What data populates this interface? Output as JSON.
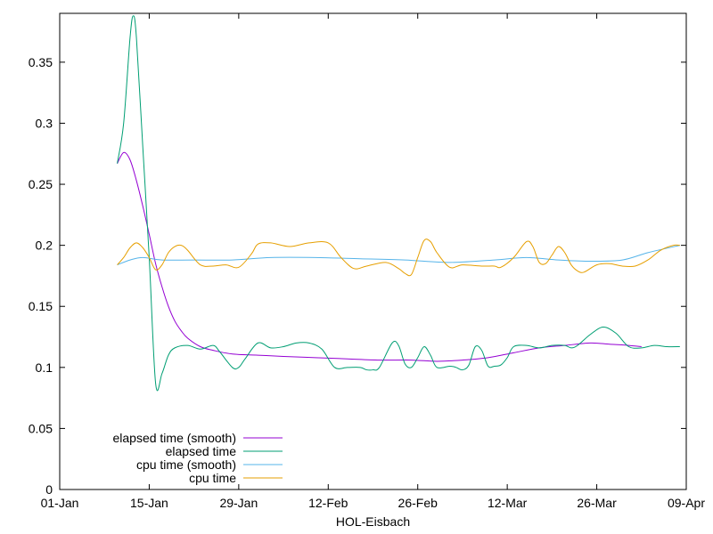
{
  "chart_data": {
    "type": "line",
    "title": "",
    "xlabel": "HOL-Eisbach",
    "ylabel": "",
    "xlim": [
      "2019-01-01",
      "2019-04-09"
    ],
    "ylim": [
      0,
      0.39
    ],
    "x_ticks": [
      "01-Jan",
      "15-Jan",
      "29-Jan",
      "12-Feb",
      "26-Feb",
      "12-Mar",
      "26-Mar",
      "09-Apr"
    ],
    "y_ticks": [
      "0",
      "0.05",
      "0.1",
      "0.15",
      "0.2",
      "0.25",
      "0.3",
      "0.35"
    ],
    "grid": false,
    "legend_position": "bottom-left",
    "series": [
      {
        "name": "elapsed time (smooth)",
        "color": "#9400d3",
        "points": [
          [
            "2019-01-10",
            0.267
          ],
          [
            "2019-01-11",
            0.276
          ],
          [
            "2019-01-12",
            0.27
          ],
          [
            "2019-01-13",
            0.253
          ],
          [
            "2019-01-14",
            0.232
          ],
          [
            "2019-01-15",
            0.209
          ],
          [
            "2019-01-16",
            0.185
          ],
          [
            "2019-01-17",
            0.166
          ],
          [
            "2019-01-18",
            0.15
          ],
          [
            "2019-01-19",
            0.138
          ],
          [
            "2019-01-20",
            0.13
          ],
          [
            "2019-01-21",
            0.124
          ],
          [
            "2019-01-23",
            0.117
          ],
          [
            "2019-01-25",
            0.114
          ],
          [
            "2019-01-28",
            0.111
          ],
          [
            "2019-02-01",
            0.11
          ],
          [
            "2019-02-05",
            0.109
          ],
          [
            "2019-02-10",
            0.108
          ],
          [
            "2019-02-15",
            0.107
          ],
          [
            "2019-02-20",
            0.106
          ],
          [
            "2019-02-25",
            0.106
          ],
          [
            "2019-03-01",
            0.105
          ],
          [
            "2019-03-05",
            0.106
          ],
          [
            "2019-03-09",
            0.108
          ],
          [
            "2019-03-13",
            0.112
          ],
          [
            "2019-03-17",
            0.116
          ],
          [
            "2019-03-21",
            0.118
          ],
          [
            "2019-03-25",
            0.12
          ],
          [
            "2019-03-28",
            0.119
          ],
          [
            "2019-03-31",
            0.118
          ],
          [
            "2019-04-02",
            0.117
          ]
        ]
      },
      {
        "name": "elapsed time",
        "color": "#009e73",
        "points": [
          [
            "2019-01-10",
            0.267
          ],
          [
            "2019-01-11",
            0.3
          ],
          [
            "2019-01-12",
            0.37
          ],
          [
            "2019-01-12.5",
            0.388
          ],
          [
            "2019-01-13",
            0.37
          ],
          [
            "2019-01-14",
            0.28
          ],
          [
            "2019-01-15",
            0.19
          ],
          [
            "2019-01-16",
            0.087
          ],
          [
            "2019-01-17",
            0.095
          ],
          [
            "2019-01-18",
            0.11
          ],
          [
            "2019-01-19",
            0.116
          ],
          [
            "2019-01-21",
            0.118
          ],
          [
            "2019-01-23",
            0.115
          ],
          [
            "2019-01-25",
            0.118
          ],
          [
            "2019-01-26",
            0.113
          ],
          [
            "2019-01-28",
            0.1
          ],
          [
            "2019-01-29",
            0.1
          ],
          [
            "2019-01-30",
            0.107
          ],
          [
            "2019-02-01",
            0.12
          ],
          [
            "2019-02-03",
            0.116
          ],
          [
            "2019-02-05",
            0.117
          ],
          [
            "2019-02-07",
            0.12
          ],
          [
            "2019-02-09",
            0.12
          ],
          [
            "2019-02-11",
            0.115
          ],
          [
            "2019-02-13",
            0.1
          ],
          [
            "2019-02-15",
            0.1
          ],
          [
            "2019-02-17",
            0.1
          ],
          [
            "2019-02-18",
            0.098
          ],
          [
            "2019-02-19",
            0.098
          ],
          [
            "2019-02-20",
            0.1
          ],
          [
            "2019-02-22",
            0.12
          ],
          [
            "2019-02-23",
            0.118
          ],
          [
            "2019-02-24",
            0.103
          ],
          [
            "2019-02-25",
            0.1
          ],
          [
            "2019-02-26",
            0.108
          ],
          [
            "2019-02-27",
            0.117
          ],
          [
            "2019-02-28",
            0.11
          ],
          [
            "2019-03-01",
            0.1
          ],
          [
            "2019-03-03",
            0.101
          ],
          [
            "2019-03-04",
            0.1
          ],
          [
            "2019-03-05",
            0.098
          ],
          [
            "2019-03-06",
            0.102
          ],
          [
            "2019-03-07",
            0.117
          ],
          [
            "2019-03-08",
            0.114
          ],
          [
            "2019-03-09",
            0.101
          ],
          [
            "2019-03-10",
            0.101
          ],
          [
            "2019-03-11",
            0.102
          ],
          [
            "2019-03-12",
            0.108
          ],
          [
            "2019-03-13",
            0.117
          ],
          [
            "2019-03-15",
            0.118
          ],
          [
            "2019-03-17",
            0.116
          ],
          [
            "2019-03-19",
            0.118
          ],
          [
            "2019-03-21",
            0.118
          ],
          [
            "2019-03-22",
            0.116
          ],
          [
            "2019-03-23",
            0.118
          ],
          [
            "2019-03-25",
            0.127
          ],
          [
            "2019-03-27",
            0.133
          ],
          [
            "2019-03-29",
            0.128
          ],
          [
            "2019-03-31",
            0.117
          ],
          [
            "2019-04-02",
            0.116
          ],
          [
            "2019-04-04",
            0.118
          ],
          [
            "2019-04-06",
            0.117
          ],
          [
            "2019-04-08",
            0.117
          ]
        ]
      },
      {
        "name": "cpu time (smooth)",
        "color": "#56b4e9",
        "points": [
          [
            "2019-01-10",
            0.184
          ],
          [
            "2019-01-12",
            0.188
          ],
          [
            "2019-01-14",
            0.19
          ],
          [
            "2019-01-17",
            0.188
          ],
          [
            "2019-01-22",
            0.188
          ],
          [
            "2019-01-28",
            0.188
          ],
          [
            "2019-02-03",
            0.19
          ],
          [
            "2019-02-10",
            0.19
          ],
          [
            "2019-02-17",
            0.189
          ],
          [
            "2019-02-24",
            0.188
          ],
          [
            "2019-03-03",
            0.186
          ],
          [
            "2019-03-10",
            0.188
          ],
          [
            "2019-03-15",
            0.19
          ],
          [
            "2019-03-20",
            0.188
          ],
          [
            "2019-03-25",
            0.187
          ],
          [
            "2019-03-30",
            0.188
          ],
          [
            "2019-04-03",
            0.194
          ],
          [
            "2019-04-08",
            0.2
          ]
        ]
      },
      {
        "name": "cpu time",
        "color": "#e69f00",
        "points": [
          [
            "2019-01-10",
            0.184
          ],
          [
            "2019-01-11",
            0.19
          ],
          [
            "2019-01-12",
            0.198
          ],
          [
            "2019-01-13",
            0.202
          ],
          [
            "2019-01-14",
            0.198
          ],
          [
            "2019-01-15",
            0.19
          ],
          [
            "2019-01-16",
            0.18
          ],
          [
            "2019-01-17",
            0.184
          ],
          [
            "2019-01-18",
            0.194
          ],
          [
            "2019-01-19",
            0.199
          ],
          [
            "2019-01-20",
            0.2
          ],
          [
            "2019-01-21",
            0.196
          ],
          [
            "2019-01-23",
            0.184
          ],
          [
            "2019-01-25",
            0.183
          ],
          [
            "2019-01-27",
            0.184
          ],
          [
            "2019-01-29",
            0.182
          ],
          [
            "2019-01-31",
            0.193
          ],
          [
            "2019-02-01",
            0.201
          ],
          [
            "2019-02-03",
            0.202
          ],
          [
            "2019-02-06",
            0.199
          ],
          [
            "2019-02-09",
            0.202
          ],
          [
            "2019-02-12",
            0.202
          ],
          [
            "2019-02-14",
            0.19
          ],
          [
            "2019-02-16",
            0.181
          ],
          [
            "2019-02-18",
            0.183
          ],
          [
            "2019-02-21",
            0.186
          ],
          [
            "2019-02-23",
            0.181
          ],
          [
            "2019-02-24",
            0.177
          ],
          [
            "2019-02-25",
            0.176
          ],
          [
            "2019-02-26",
            0.19
          ],
          [
            "2019-02-27",
            0.204
          ],
          [
            "2019-02-28",
            0.203
          ],
          [
            "2019-03-01",
            0.194
          ],
          [
            "2019-03-03",
            0.182
          ],
          [
            "2019-03-05",
            0.184
          ],
          [
            "2019-03-08",
            0.183
          ],
          [
            "2019-03-10",
            0.183
          ],
          [
            "2019-03-11",
            0.182
          ],
          [
            "2019-03-13",
            0.19
          ],
          [
            "2019-03-15",
            0.203
          ],
          [
            "2019-03-16",
            0.199
          ],
          [
            "2019-03-17",
            0.186
          ],
          [
            "2019-03-18",
            0.185
          ],
          [
            "2019-03-19",
            0.192
          ],
          [
            "2019-03-20",
            0.199
          ],
          [
            "2019-03-21",
            0.194
          ],
          [
            "2019-03-22",
            0.184
          ],
          [
            "2019-03-23",
            0.179
          ],
          [
            "2019-03-24",
            0.178
          ],
          [
            "2019-03-26",
            0.184
          ],
          [
            "2019-03-28",
            0.185
          ],
          [
            "2019-03-30",
            0.183
          ],
          [
            "2019-04-01",
            0.183
          ],
          [
            "2019-04-03",
            0.188
          ],
          [
            "2019-04-05",
            0.196
          ],
          [
            "2019-04-07",
            0.2
          ],
          [
            "2019-04-08",
            0.2
          ]
        ]
      }
    ]
  }
}
